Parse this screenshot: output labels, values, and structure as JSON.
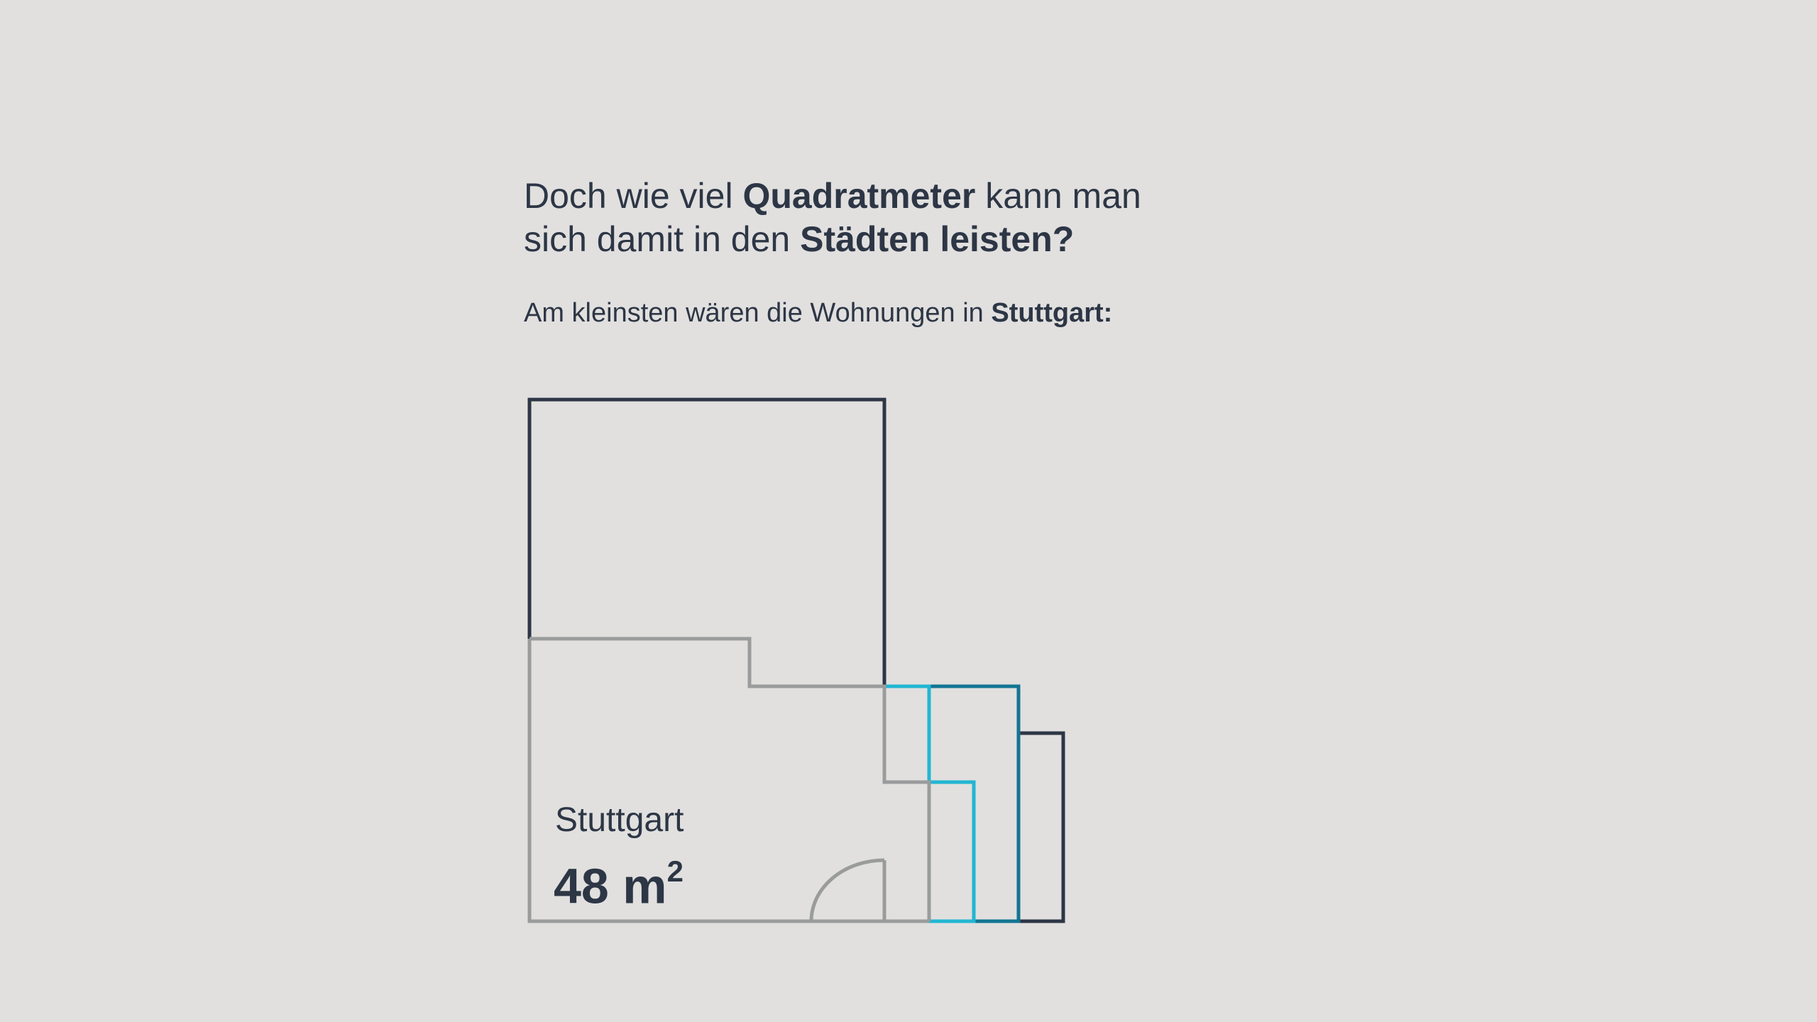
{
  "headline": {
    "part1": "Doch wie viel ",
    "bold1": "Quadratmeter",
    "part2": " kann man",
    "part3": "sich damit in den ",
    "bold2": "Städten leisten?"
  },
  "subline": {
    "text": "Am kleinsten wären die Wohnungen in ",
    "bold": "Stuttgart:"
  },
  "plan": {
    "city": "Stuttgart",
    "area_value": "48 m",
    "area_unit_exp": "2"
  },
  "colors": {
    "background": "#e1e0df",
    "text": "#2d3645",
    "outline_dark": "#2d3645",
    "outline_gray": "#9a9c9c",
    "outline_cyan": "#22b6d2",
    "outline_teal": "#127593"
  }
}
